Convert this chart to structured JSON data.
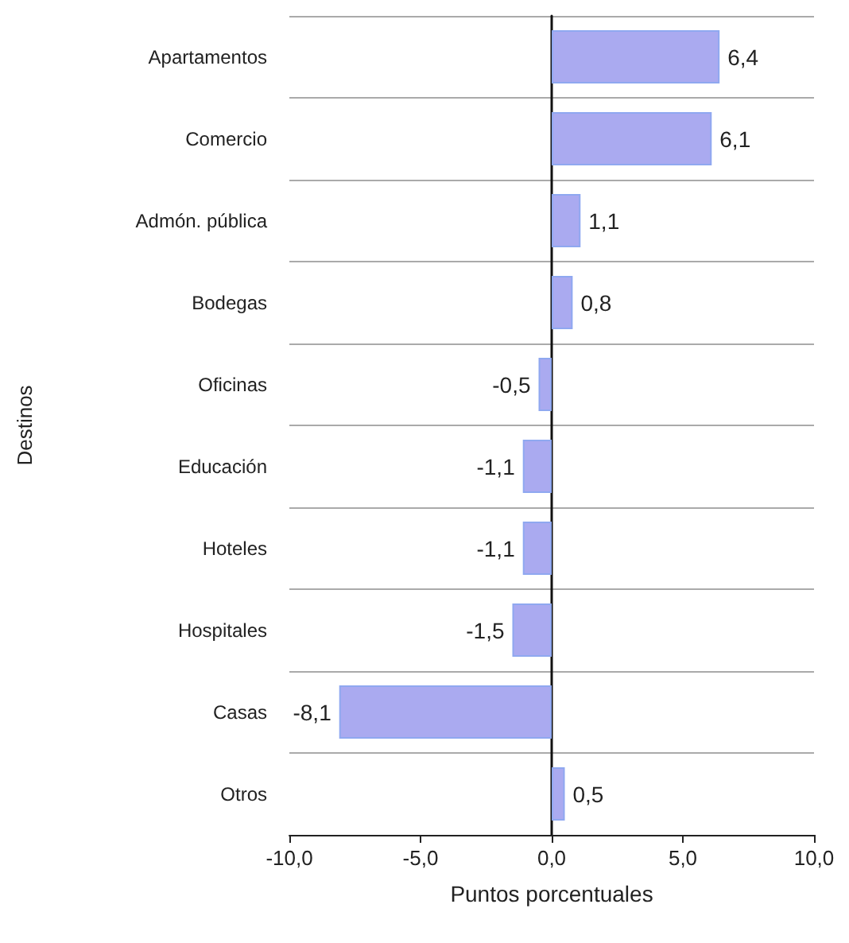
{
  "chart_data": {
    "type": "bar",
    "orientation": "horizontal",
    "xlabel": "Puntos porcentuales",
    "ylabel": "Destinos",
    "categories": [
      "Apartamentos",
      "Comercio",
      "Admón. pública",
      "Bodegas",
      "Oficinas",
      "Educación",
      "Hoteles",
      "Hospitales",
      "Casas",
      "Otros"
    ],
    "values": [
      6.4,
      6.1,
      1.1,
      0.8,
      -0.5,
      -1.1,
      -1.1,
      -1.5,
      -8.1,
      0.5
    ],
    "value_labels": [
      "6,4",
      "6,1",
      "1,1",
      "0,8",
      "-0,5",
      "-1,1",
      "-1,1",
      "-1,5",
      "-8,1",
      "0,5"
    ],
    "color": "#aaaaf0",
    "xlim": [
      -10,
      10
    ],
    "xticks": [
      {
        "value": -10,
        "label": "-10,0"
      },
      {
        "value": -5,
        "label": "-5,0"
      },
      {
        "value": 0,
        "label": "0,0"
      },
      {
        "value": 5,
        "label": "5,0"
      },
      {
        "value": 10,
        "label": "10,0"
      }
    ],
    "grid": "y"
  }
}
